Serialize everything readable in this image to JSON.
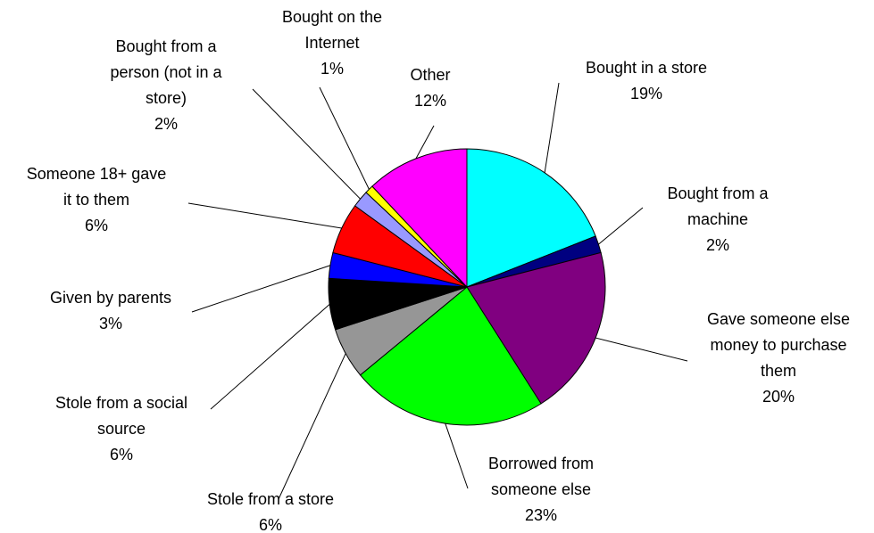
{
  "chart_data": {
    "type": "pie",
    "title": "",
    "start_angle_deg": 0,
    "direction": "clockwise",
    "slices": [
      {
        "label": "Bought in a store",
        "value": 19,
        "display": "19%",
        "color": "#00FFFF"
      },
      {
        "label": "Bought from a machine",
        "value": 2,
        "display": "2%",
        "color": "#000080"
      },
      {
        "label": "Gave someone else money to purchase them",
        "value": 20,
        "display": "20%",
        "color": "#800080"
      },
      {
        "label": "Borrowed from someone else",
        "value": 23,
        "display": "23%",
        "color": "#00FF00"
      },
      {
        "label": "Stole from a store",
        "value": 6,
        "display": "6%",
        "color": "#969696"
      },
      {
        "label": "Stole from a social source",
        "value": 6,
        "display": "6%",
        "color": "#000000"
      },
      {
        "label": "Given by parents",
        "value": 3,
        "display": "3%",
        "color": "#0000FF"
      },
      {
        "label": "Someone 18+ gave it to them",
        "value": 6,
        "display": "6%",
        "color": "#FF0000"
      },
      {
        "label": "Bought from a person (not in a store)",
        "value": 2,
        "display": "2%",
        "color": "#9999FF"
      },
      {
        "label": "Bought on the Internet",
        "value": 1,
        "display": "1%",
        "color": "#FFFF00"
      },
      {
        "label": "Other",
        "value": 12,
        "display": "12%",
        "color": "#FF00FF"
      }
    ]
  }
}
